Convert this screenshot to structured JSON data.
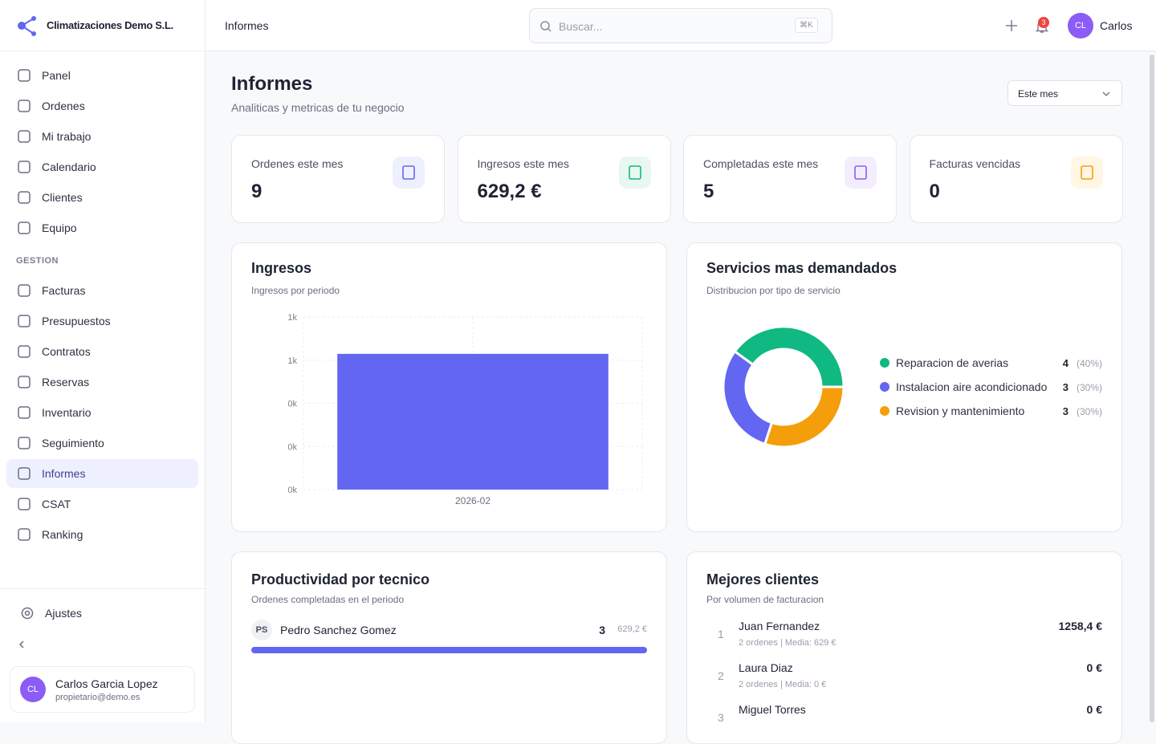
{
  "header": {
    "brand": "Climatizaciones Demo S.L.",
    "page": "Informes",
    "search_placeholder": "Buscar...",
    "shortcut": "⌘K",
    "notifications": "3",
    "user_initials": "CL",
    "user_name": "Carlos"
  },
  "sidebar": {
    "nav": [
      "Panel",
      "Ordenes",
      "Mi trabajo",
      "Calendario",
      "Clientes",
      "Equipo"
    ],
    "section": "GESTION",
    "nav2": [
      "Facturas",
      "Presupuestos",
      "Contratos",
      "Reservas",
      "Inventario",
      "Seguimiento",
      "Informes",
      "CSAT",
      "Ranking"
    ],
    "settings": "Ajustes",
    "user": {
      "initials": "CL",
      "name": "Carlos Garcia Lopez",
      "email": "propietario@demo.es"
    }
  },
  "page": {
    "title": "Informes",
    "subtitle": "Analiticas y metricas de tu negocio",
    "period": "Este mes"
  },
  "kpis": [
    {
      "label": "Ordenes este mes",
      "value": "9",
      "color": "#6366f1",
      "bg": "#eef0ff"
    },
    {
      "label": "Ingresos este mes",
      "value": "629,2 €",
      "color": "#10b981",
      "bg": "#e8f8f1"
    },
    {
      "label": "Completadas este mes",
      "value": "5",
      "color": "#8b5cf6",
      "bg": "#f3eefe"
    },
    {
      "label": "Facturas vencidas",
      "value": "0",
      "color": "#f59e0b",
      "bg": "#fff6e4"
    }
  ],
  "chart_data": [
    {
      "type": "bar",
      "title": "Ingresos",
      "subtitle": "Ingresos por periodo",
      "categories": [
        "2026-02"
      ],
      "values": [
        629.2
      ],
      "color": "#6366f1",
      "ylim": [
        0,
        800
      ],
      "yticks": [
        {
          "value": 0,
          "label": "0k"
        },
        {
          "value": 200,
          "label": "0k"
        },
        {
          "value": 400,
          "label": "0k"
        },
        {
          "value": 600,
          "label": "1k"
        },
        {
          "value": 800,
          "label": "1k"
        }
      ],
      "grid": true
    },
    {
      "type": "pie",
      "title": "Servicios mas demandados",
      "subtitle": "Distribucion por tipo de servicio",
      "categories": [
        "Reparacion de averias",
        "Instalacion aire acondicionado",
        "Revision y mantenimiento"
      ],
      "values": [
        4,
        3,
        3
      ],
      "percent_labels": [
        "(40%)",
        "(30%)",
        "(30%)"
      ],
      "colors": [
        "#10b981",
        "#6366f1",
        "#f59e0b"
      ]
    }
  ],
  "productivity": {
    "title": "Productividad por tecnico",
    "subtitle": "Ordenes completadas en el periodo",
    "rows": [
      {
        "initials": "PS",
        "name": "Pedro Sanchez Gomez",
        "orders": 3,
        "amount": "629,2 €"
      }
    ]
  },
  "clients": {
    "title": "Mejores clientes",
    "subtitle": "Por volumen de facturacion",
    "rows": [
      {
        "rank": "1",
        "name": "Juan Fernandez",
        "detail": "2 ordenes | Media: 629 €",
        "amount": "1258,4 €"
      },
      {
        "rank": "2",
        "name": "Laura Diaz",
        "detail": "2 ordenes | Media: 0 €",
        "amount": "0 €"
      },
      {
        "rank": "3",
        "name": "Miguel Torres",
        "amount": "0 €"
      }
    ]
  }
}
